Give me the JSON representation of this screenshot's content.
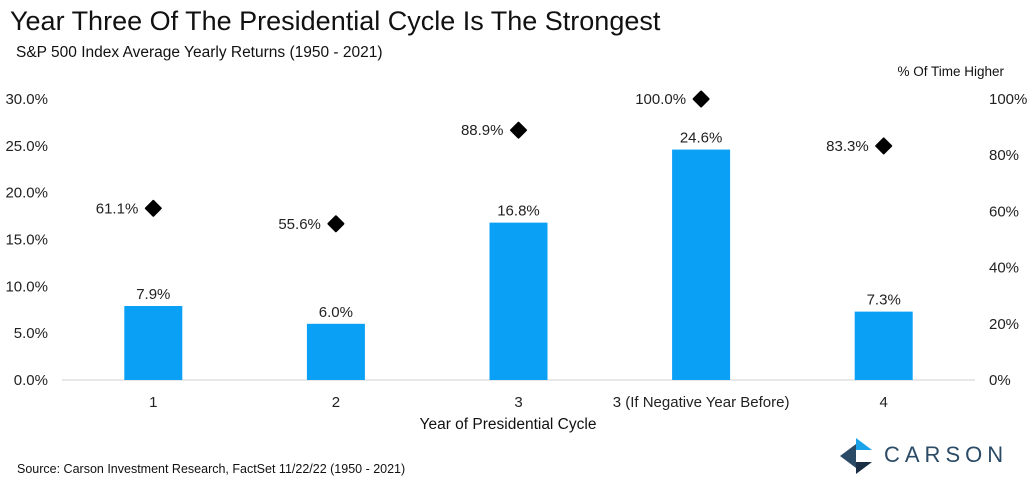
{
  "title": "Year Three Of The Presidential Cycle Is The Strongest",
  "subtitle": "S&P 500 Index Average Yearly Returns (1950 - 2021)",
  "source": "Source: Carson Investment Research, FactSet 11/22/22 (1950 - 2021)",
  "logo_text": "CARSON",
  "colors": {
    "bar": "#0aa0f5",
    "marker": "#000000",
    "text": "#222222",
    "logo": "#2b4a66",
    "logo_accent": "#1aa3e8"
  },
  "chart_data": {
    "type": "bar",
    "categories": [
      "1",
      "2",
      "3",
      "3 (If Negative Year Before)",
      "4"
    ],
    "xlabel": "Year of Presidential Cycle",
    "series": [
      {
        "type": "bar",
        "axis": "left",
        "values": [
          7.9,
          6.0,
          16.8,
          24.6,
          7.3
        ],
        "labels": [
          "7.9%",
          "6.0%",
          "16.8%",
          "24.6%",
          "7.3%"
        ]
      },
      {
        "name": "% Of Time Higher",
        "type": "scatter",
        "axis": "right",
        "marker": "diamond",
        "values": [
          61.1,
          55.6,
          88.9,
          100.0,
          83.3
        ],
        "labels": [
          "61.1%",
          "55.6%",
          "88.9%",
          "100.0%",
          "83.3%"
        ]
      }
    ],
    "y_left": {
      "lim": [
        0,
        30
      ],
      "ticks": [
        0,
        5,
        10,
        15,
        20,
        25,
        30
      ],
      "tick_labels": [
        "0.0%",
        "5.0%",
        "10.0%",
        "15.0%",
        "20.0%",
        "25.0%",
        "30.0%"
      ]
    },
    "y_right": {
      "label": "% Of Time Higher",
      "lim": [
        0,
        100
      ],
      "ticks": [
        0,
        20,
        40,
        60,
        80,
        100
      ],
      "tick_labels": [
        "0%",
        "20%",
        "40%",
        "60%",
        "80%",
        "100%"
      ]
    },
    "grid": false,
    "legend": "none"
  }
}
